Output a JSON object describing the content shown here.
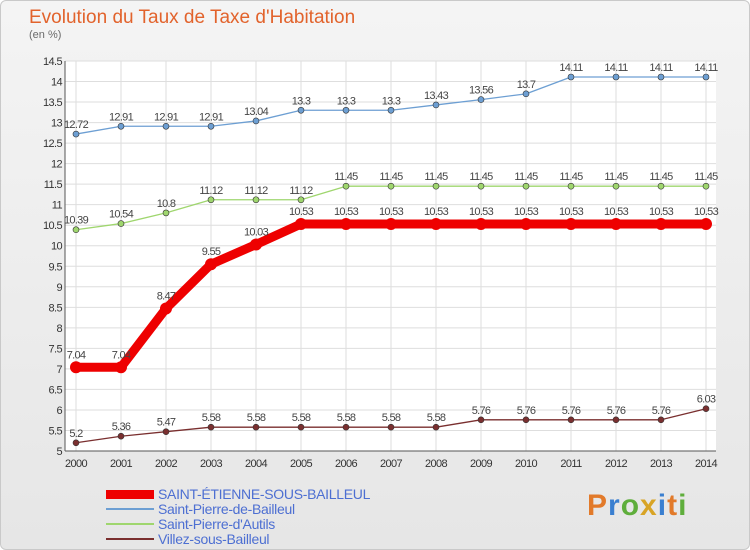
{
  "title": "Evolution du Taux de Taxe d'Habitation",
  "subtitle": "(en %)",
  "logo": {
    "text": "Proxiti",
    "letter_colors": [
      "#e27a2a",
      "#3a7fd0",
      "#5fae3c",
      "#d8a426",
      "#3a7fd0",
      "#e27a2a",
      "#5fae3c"
    ]
  },
  "chart_data": {
    "type": "line",
    "x": [
      "2000",
      "2001",
      "2002",
      "2003",
      "2004",
      "2005",
      "2006",
      "2007",
      "2008",
      "2009",
      "2010",
      "2011",
      "2012",
      "2013",
      "2014"
    ],
    "ylim": [
      5,
      14.5
    ],
    "yticks": [
      "5",
      "5.5",
      "6",
      "6.5",
      "7",
      "7.5",
      "8",
      "8.5",
      "9",
      "9.5",
      "10",
      "10.5",
      "11",
      "11.5",
      "12",
      "12.5",
      "13",
      "13.5",
      "14",
      "14.5"
    ],
    "grid": true,
    "legend_position": "bottom-left",
    "series": [
      {
        "name": "SAINT-ÉTIENNE-SOUS-BAILLEUL",
        "color": "#ee0000",
        "emphasis": true,
        "values": [
          7.04,
          7.04,
          8.47,
          9.55,
          10.03,
          10.53,
          10.53,
          10.53,
          10.53,
          10.53,
          10.53,
          10.53,
          10.53,
          10.53,
          10.53
        ],
        "labels": [
          "7.04",
          "7.04",
          "8.47",
          "9.55",
          "10.03",
          "10.53",
          "10.53",
          "10.53",
          "10.53",
          "10.53",
          "10.53",
          "10.53",
          "10.53",
          "10.53",
          "10.53"
        ]
      },
      {
        "name": "Saint-Pierre-de-Bailleul",
        "color": "#6d9fd3",
        "values": [
          12.72,
          12.91,
          12.91,
          12.91,
          13.04,
          13.3,
          13.3,
          13.3,
          13.43,
          13.56,
          13.7,
          14.11,
          14.11,
          14.11,
          14.11
        ],
        "labels": [
          "12.72",
          "12.91",
          "12.91",
          "12.91",
          "13.04",
          "13.3",
          "13.3",
          "13.3",
          "13.43",
          "13.56",
          "13.7",
          "14.11",
          "14.11",
          "14.11",
          "14.11"
        ]
      },
      {
        "name": "Saint-Pierre-d'Autils",
        "color": "#9fd66e",
        "values": [
          10.39,
          10.54,
          10.8,
          11.12,
          11.12,
          11.12,
          11.45,
          11.45,
          11.45,
          11.45,
          11.45,
          11.45,
          11.45,
          11.45,
          11.45
        ],
        "labels": [
          "10.39",
          "10.54",
          "10.8",
          "11.12",
          "11.12",
          "11.12",
          "11.45",
          "11.45",
          "11.45",
          "11.45",
          "11.45",
          "11.45",
          "11.45",
          "11.45",
          "11.45"
        ]
      },
      {
        "name": "Villez-sous-Bailleul",
        "color": "#7a2f2f",
        "values": [
          5.2,
          5.36,
          5.47,
          5.58,
          5.58,
          5.58,
          5.58,
          5.58,
          5.58,
          5.76,
          5.76,
          5.76,
          5.76,
          5.76,
          6.03
        ],
        "labels": [
          "5.2",
          "5.36",
          "5.47",
          "5.58",
          "5.58",
          "5.58",
          "5.58",
          "5.58",
          "5.58",
          "5.76",
          "5.76",
          "5.76",
          "5.76",
          "5.76",
          "6.03"
        ]
      }
    ]
  }
}
